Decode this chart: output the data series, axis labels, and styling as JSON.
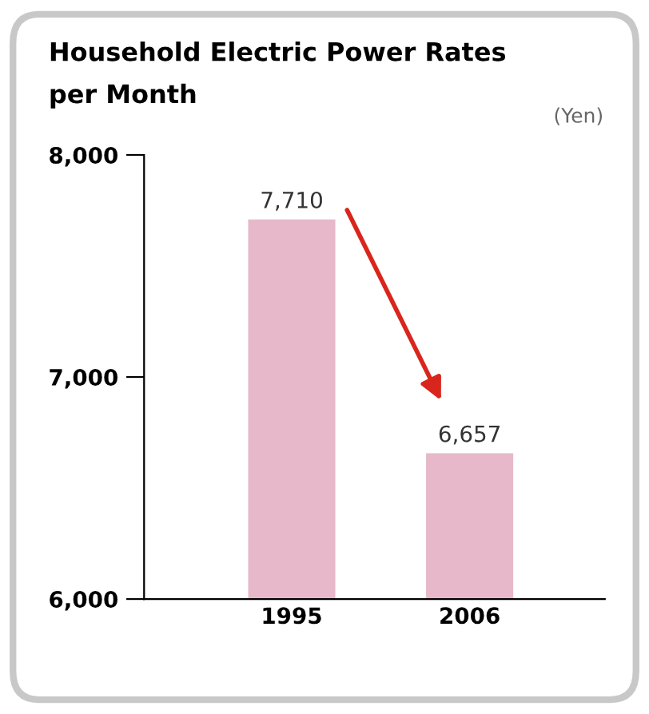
{
  "chart_data": {
    "type": "bar",
    "title": "Household Electric Power Rates\nper Month",
    "ylabel": "(Yen)",
    "categories": [
      "1995",
      "2006"
    ],
    "values": [
      7710,
      6657
    ],
    "value_labels": [
      "7,710",
      "6,657"
    ],
    "color": "#e6b8ca",
    "ylim": [
      6000,
      8000
    ],
    "yticks": [
      {
        "value": 6000,
        "label": "6,000"
      },
      {
        "value": 7000,
        "label": "7,000"
      },
      {
        "value": 8000,
        "label": "8,000"
      }
    ],
    "grid": false
  }
}
